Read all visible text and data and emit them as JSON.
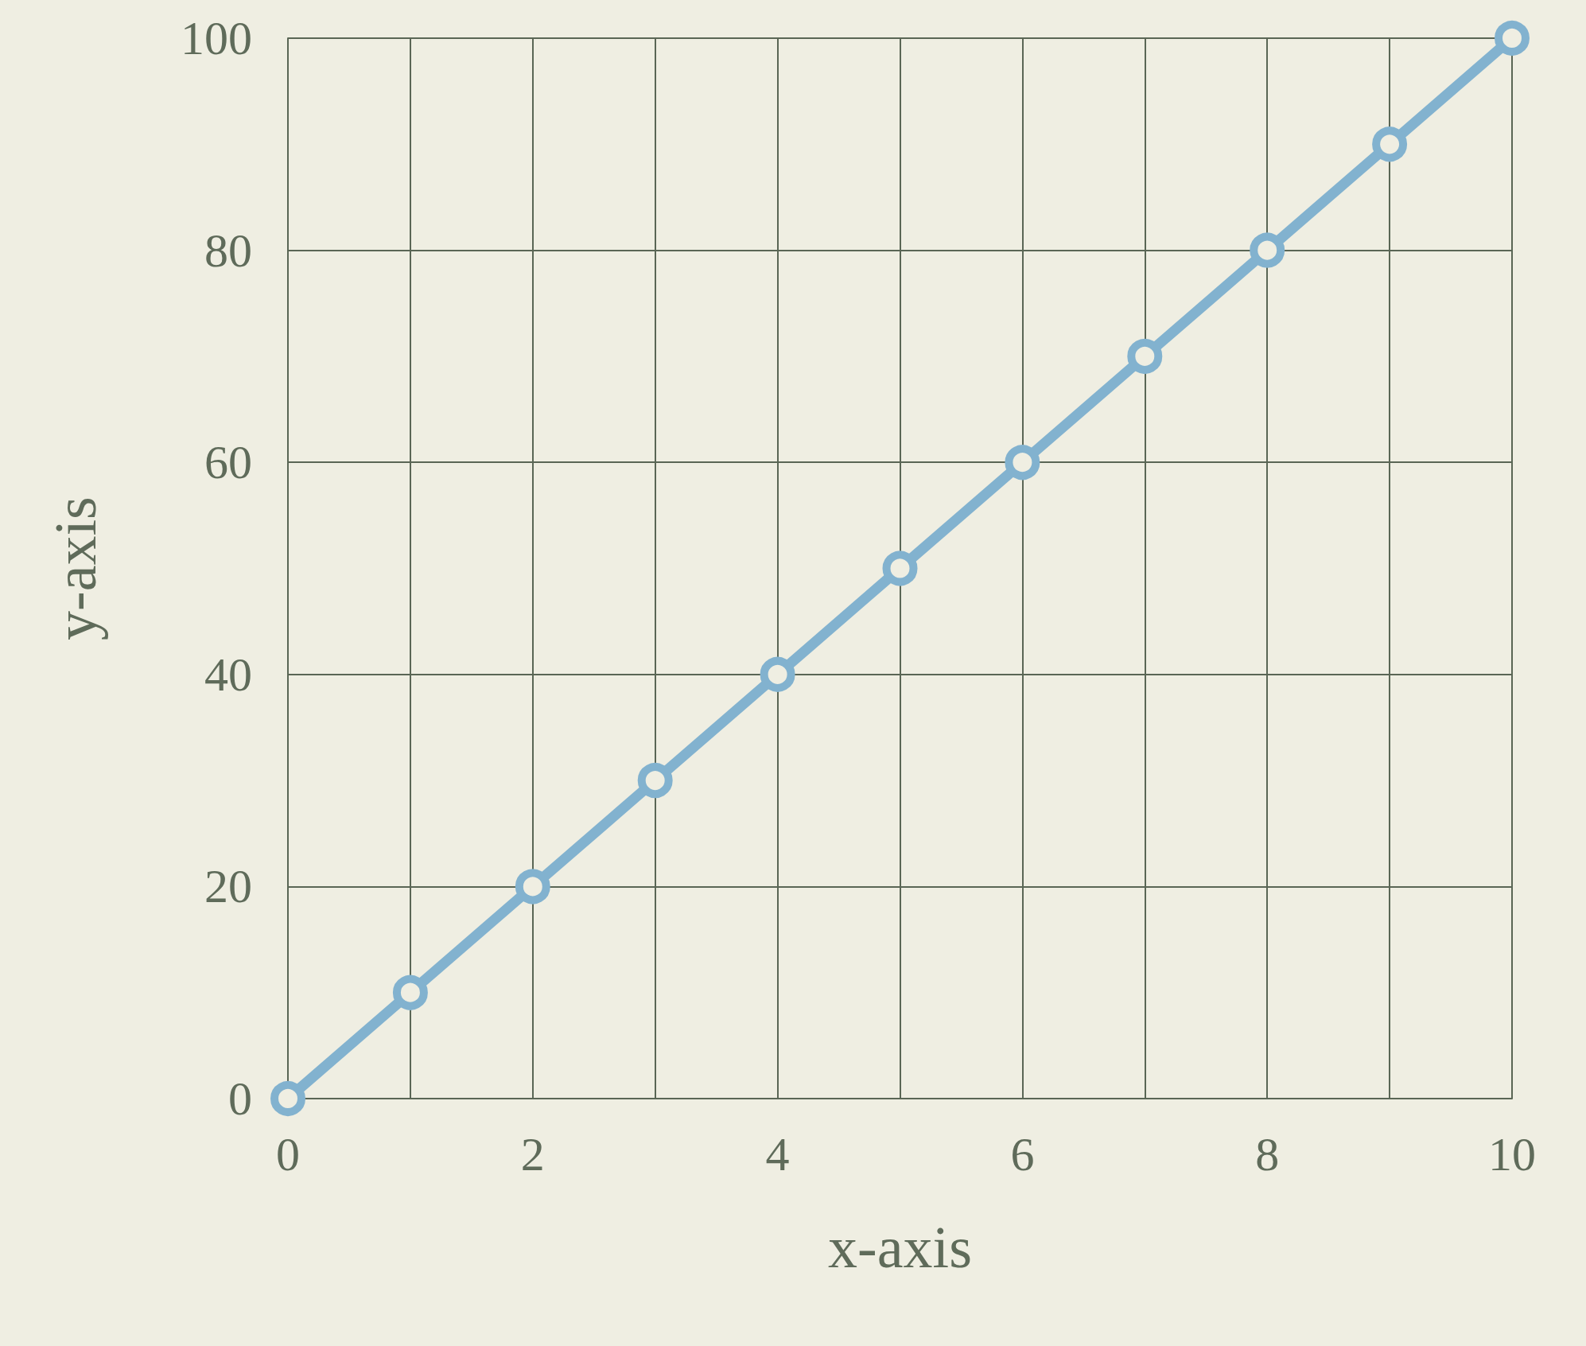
{
  "chart_data": {
    "type": "line",
    "xlabel": "x-axis",
    "ylabel": "y-axis",
    "x": [
      0,
      1,
      2,
      3,
      4,
      5,
      6,
      7,
      8,
      9,
      10
    ],
    "series": [
      {
        "color": "#82b2cf",
        "values": [
          0,
          10,
          20,
          30,
          40,
          50,
          60,
          70,
          80,
          90,
          100
        ]
      }
    ],
    "xlim": [
      0,
      10
    ],
    "xticks": [
      0,
      {
        "value": 1,
        "label": null
      },
      2,
      {
        "value": 3,
        "label": null
      },
      4,
      {
        "value": 5,
        "label": null
      },
      6,
      {
        "value": 7,
        "label": null
      },
      8,
      {
        "value": 9,
        "label": null
      },
      10
    ],
    "ylim": [
      0,
      100
    ],
    "yticks": [
      0,
      20,
      40,
      60,
      80,
      100
    ],
    "grid": true,
    "marker": "circle",
    "line_style": "solid"
  }
}
